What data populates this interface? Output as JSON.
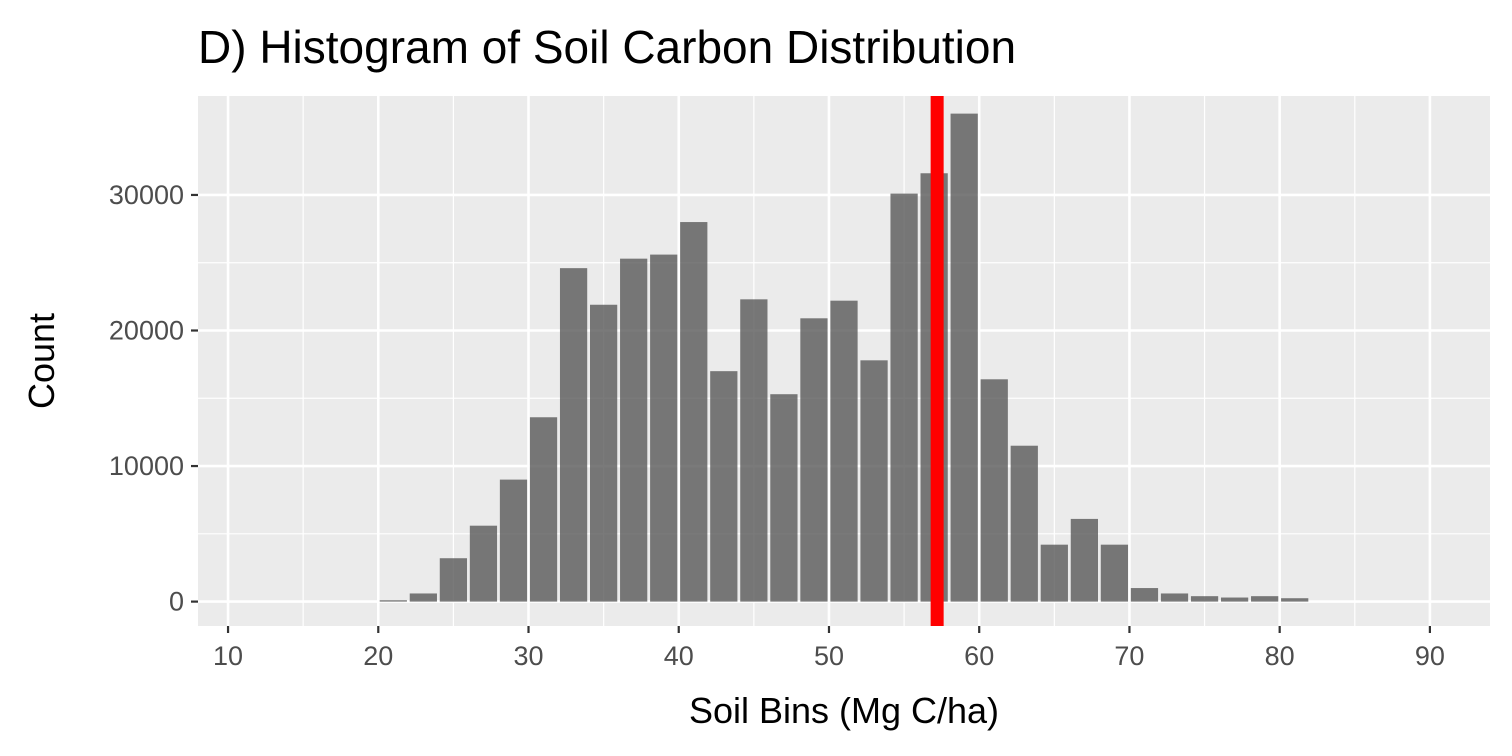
{
  "chart_data": {
    "type": "bar",
    "title": "D) Histogram of Soil Carbon Distribution",
    "xlabel": "Soil Bins (Mg C/ha)",
    "ylabel": "Count",
    "xlim": [
      8,
      94
    ],
    "ylim": [
      -1800,
      37300
    ],
    "x_ticks": [
      10,
      20,
      30,
      40,
      50,
      60,
      70,
      80,
      90
    ],
    "x_tick_labels": [
      "10",
      "20",
      "30",
      "40",
      "50",
      "60",
      "70",
      "80",
      "90"
    ],
    "y_ticks": [
      0,
      10000,
      20000,
      30000
    ],
    "y_tick_labels": [
      "0",
      "10000",
      "20000",
      "30000"
    ],
    "bin_width": 2,
    "bin_centers": [
      21,
      23,
      25,
      27,
      29,
      31,
      33,
      35,
      37,
      39,
      41,
      43,
      45,
      47,
      49,
      51,
      53,
      55,
      57,
      59,
      61,
      63,
      65,
      67,
      69,
      71,
      73,
      75,
      77,
      79,
      81
    ],
    "values": [
      100,
      600,
      3200,
      5600,
      9000,
      13600,
      24600,
      21900,
      25300,
      25600,
      28000,
      17000,
      22300,
      15300,
      20900,
      22200,
      17800,
      30100,
      31600,
      36000,
      16400,
      11500,
      4200,
      6100,
      4200,
      1000,
      600,
      400,
      300,
      400,
      250
    ],
    "bar_color": "#595959",
    "reference_line": {
      "x": 57.2,
      "color": "#ff0000"
    },
    "panel_background": "#ebebeb",
    "grid": true,
    "legend": "none"
  }
}
